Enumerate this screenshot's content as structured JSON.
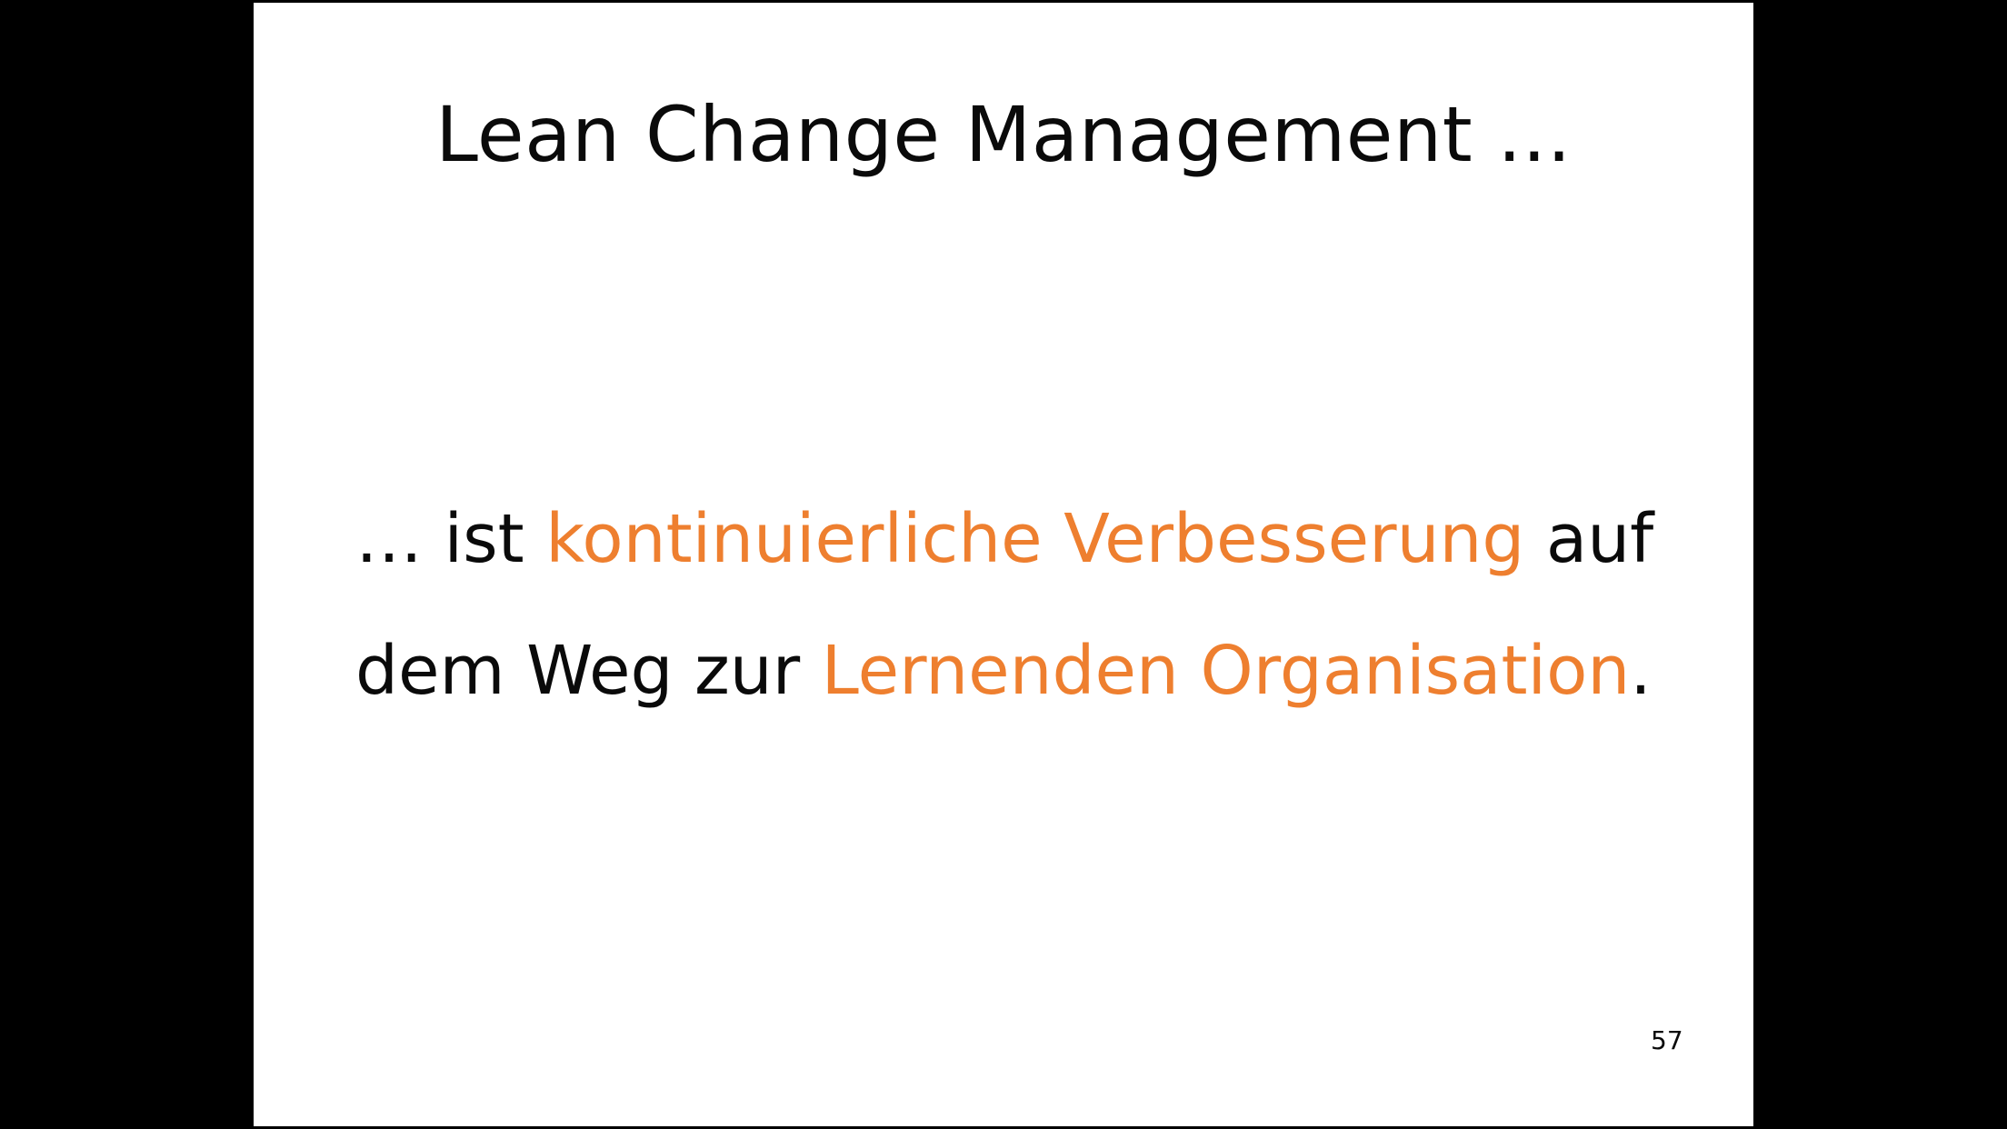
{
  "slide": {
    "title": "Lean Change Management ...",
    "body": {
      "line1": {
        "prefix": "… ist ",
        "highlight": "kontinuierliche Verbesserung",
        "suffix": " auf"
      },
      "line2": {
        "prefix": "dem Weg zur ",
        "highlight": "Lernenden Organisation",
        "suffix": "."
      }
    },
    "page_number": "57"
  },
  "colors": {
    "background": "#000000",
    "slide": "#ffffff",
    "text": "#0a0a0a",
    "accent": "#ee7f2f"
  }
}
